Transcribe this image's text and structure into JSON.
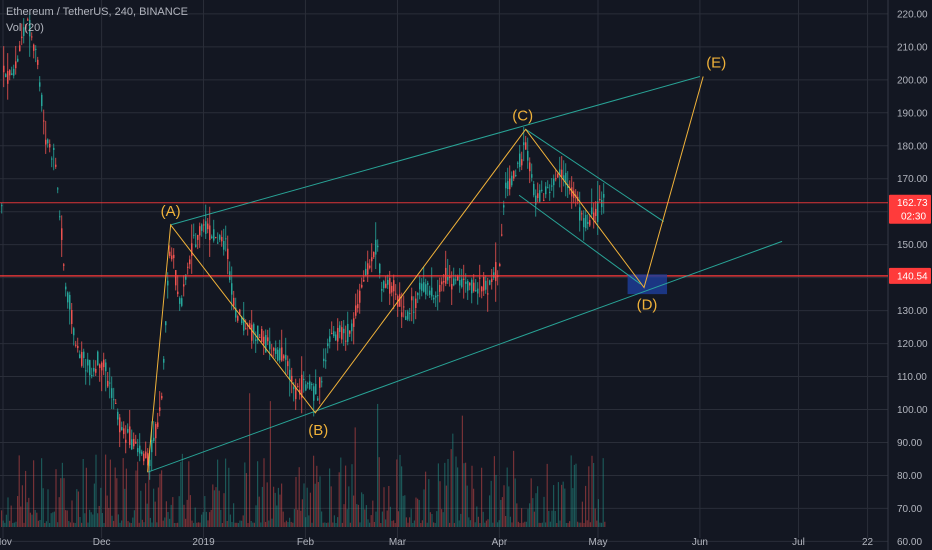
{
  "header": {
    "symbol_line": "Ethereum / TetherUS, 240, BINANCE",
    "indicator": "Vol (20)"
  },
  "colors": {
    "background": "#131722",
    "grid": "#2a2e39",
    "candle_up": "#26a69a",
    "candle_down": "#ef5350",
    "channel": "#2bb3a3",
    "wave": "#f0b23a",
    "hline": "#ff3b3b",
    "zone": "#1e3f9c"
  },
  "chart_data": {
    "type": "candlestick",
    "y_range": [
      58,
      223
    ],
    "y_ticks": [
      60,
      70,
      80,
      90,
      100,
      110,
      120,
      130,
      140,
      150,
      160,
      170,
      180,
      190,
      200,
      210,
      220
    ],
    "y_tick_labels": [
      "60.00",
      "70.00",
      "80.00",
      "90.00",
      "100.00",
      "110.00",
      "120.00",
      "130.00",
      "140.00",
      "150.00",
      "160.00",
      "170.00",
      "180.00",
      "190.00",
      "200.00",
      "210.00",
      "220.00"
    ],
    "x_tick_labels": [
      "Nov",
      "Dec",
      "2019",
      "Feb",
      "Mar",
      "Apr",
      "May",
      "Jun",
      "Jul",
      "22"
    ],
    "price_path": [
      [
        "2018-11-01",
        200
      ],
      [
        "2018-11-05",
        204
      ],
      [
        "2018-11-08",
        217
      ],
      [
        "2018-11-11",
        211
      ],
      [
        "2018-11-14",
        183
      ],
      [
        "2018-11-17",
        176
      ],
      [
        "2018-11-20",
        138
      ],
      [
        "2018-11-24",
        117
      ],
      [
        "2018-11-28",
        112
      ],
      [
        "2018-12-01",
        116
      ],
      [
        "2018-12-04",
        106
      ],
      [
        "2018-12-07",
        94
      ],
      [
        "2018-12-11",
        90
      ],
      [
        "2018-12-15",
        84
      ],
      [
        "2018-12-19",
        98
      ],
      [
        "2018-12-22",
        150
      ],
      [
        "2018-12-25",
        132
      ],
      [
        "2018-12-29",
        150
      ],
      [
        "2019-01-01",
        157
      ],
      [
        "2019-01-04",
        153
      ],
      [
        "2019-01-08",
        150
      ],
      [
        "2019-01-11",
        129
      ],
      [
        "2019-01-15",
        125
      ],
      [
        "2019-01-19",
        122
      ],
      [
        "2019-01-22",
        118
      ],
      [
        "2019-01-26",
        115
      ],
      [
        "2019-01-29",
        106
      ],
      [
        "2019-02-02",
        108
      ],
      [
        "2019-02-05",
        104
      ],
      [
        "2019-02-08",
        121
      ],
      [
        "2019-02-12",
        123
      ],
      [
        "2019-02-15",
        123
      ],
      [
        "2019-02-19",
        140
      ],
      [
        "2019-02-23",
        150
      ],
      [
        "2019-02-24",
        137
      ],
      [
        "2019-02-26",
        138
      ],
      [
        "2019-03-01",
        134
      ],
      [
        "2019-03-04",
        128
      ],
      [
        "2019-03-08",
        137
      ],
      [
        "2019-03-12",
        135
      ],
      [
        "2019-03-16",
        140
      ],
      [
        "2019-03-20",
        139
      ],
      [
        "2019-03-24",
        137
      ],
      [
        "2019-03-28",
        138
      ],
      [
        "2019-04-01",
        142
      ],
      [
        "2019-04-03",
        168
      ],
      [
        "2019-04-06",
        172
      ],
      [
        "2019-04-09",
        180
      ],
      [
        "2019-04-12",
        164
      ],
      [
        "2019-04-16",
        167
      ],
      [
        "2019-04-20",
        173
      ],
      [
        "2019-04-24",
        165
      ],
      [
        "2019-04-27",
        156
      ],
      [
        "2019-04-30",
        159
      ],
      [
        "2019-05-03",
        163
      ]
    ],
    "horizontal_levels": [
      {
        "price": 162.73,
        "label": "162.73",
        "countdown": "02:30"
      },
      {
        "price": 140.54,
        "label": "140.54"
      }
    ],
    "wave_points": [
      {
        "label": "(A)",
        "date": "2018-12-22",
        "price": 156
      },
      {
        "label": "(B)",
        "date": "2019-02-04",
        "price": 99
      },
      {
        "label": "(C)",
        "date": "2019-04-09",
        "price": 185
      },
      {
        "label": "(D)",
        "date": "2019-05-15",
        "price": 137
      },
      {
        "label": "(E)",
        "date": "2019-06-02",
        "price": 201
      }
    ],
    "wave_start": {
      "date": "2018-12-15",
      "price": 81
    },
    "channel": {
      "upper": [
        {
          "date": "2018-12-22",
          "price": 156
        },
        {
          "date": "2019-06-01",
          "price": 201
        }
      ],
      "lower": [
        {
          "date": "2018-12-15",
          "price": 81
        },
        {
          "date": "2019-06-26",
          "price": 151
        }
      ]
    },
    "inner_channel": {
      "upper": [
        {
          "date": "2019-04-09",
          "price": 185
        },
        {
          "date": "2019-05-21",
          "price": 157
        }
      ],
      "lower": [
        {
          "date": "2019-04-07",
          "price": 165
        },
        {
          "date": "2019-05-14",
          "price": 138
        }
      ]
    },
    "target_zone": {
      "date_from": "2019-05-10",
      "date_to": "2019-05-22",
      "price_from": 135,
      "price_to": 141
    },
    "volume_note": "volume bars at bottom"
  }
}
